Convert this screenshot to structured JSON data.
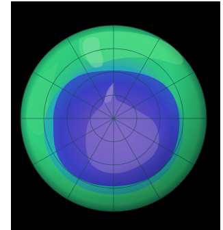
{
  "image": {
    "subject": "globe-south-polar-view",
    "colors": {
      "background": "#000000",
      "page": "#ffffff",
      "outer_band": "#2fd07a",
      "outer_band_light": "#5fe08f",
      "teal_ring": "#1fa7b5",
      "hole_blue": "#3a3fc0",
      "hole_purple": "#6a4fb8",
      "hole_core": "#7a58c2",
      "continent_tint": "#8a78c8",
      "grid_line": "#1a4a4a"
    }
  }
}
